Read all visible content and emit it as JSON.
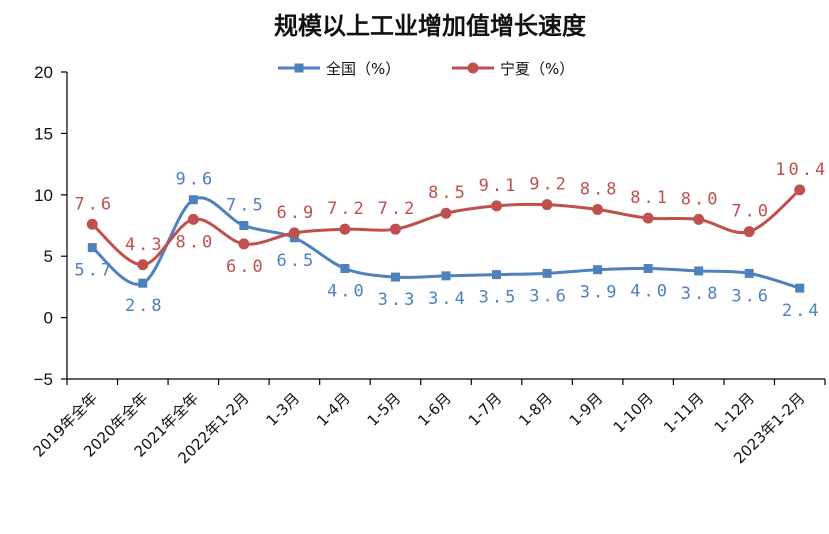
{
  "chart_data": {
    "type": "line",
    "title": "规模以上工业增加值增长速度",
    "categories": [
      "2019年全年",
      "2020年全年",
      "2021年全年",
      "2022年1-2月",
      "1-3月",
      "1-4月",
      "1-5月",
      "1-6月",
      "1-7月",
      "1-8月",
      "1-9月",
      "1-10月",
      "1-11月",
      "1-12月",
      "2023年1-2月"
    ],
    "series": [
      {
        "name": "全国（%）",
        "color": "#4f81bd",
        "values": [
          5.7,
          2.8,
          9.6,
          7.5,
          6.5,
          4.0,
          3.3,
          3.4,
          3.5,
          3.6,
          3.9,
          4.0,
          3.8,
          3.6,
          2.4
        ],
        "labels": [
          "5.7",
          "2.8",
          "9.6",
          "7.5",
          "6.5",
          "4.0",
          "3.3",
          "3.4",
          "3.5",
          "3.6",
          "3.9",
          "4.0",
          "3.8",
          "3.6",
          "2.4"
        ]
      },
      {
        "name": "宁夏（%）",
        "color": "#c0504d",
        "values": [
          7.6,
          4.3,
          8.0,
          6.0,
          6.9,
          7.2,
          7.2,
          8.5,
          9.1,
          9.2,
          8.8,
          8.1,
          8.0,
          7.0,
          10.4
        ],
        "labels": [
          "7.6",
          "4.3",
          "8.0",
          "6.0",
          "6.9",
          "7.2",
          "7.2",
          "8.5",
          "9.1",
          "9.2",
          "8.8",
          "8.1",
          "8.0",
          "7.0",
          "10.4"
        ]
      }
    ],
    "ylim": [
      -5,
      20
    ],
    "yticks": [
      -5,
      0,
      5,
      10,
      15,
      20
    ],
    "ytick_labels": [
      "−5",
      "0",
      "5",
      "10",
      "15",
      "20"
    ],
    "legend": "top-center",
    "grid": false
  }
}
